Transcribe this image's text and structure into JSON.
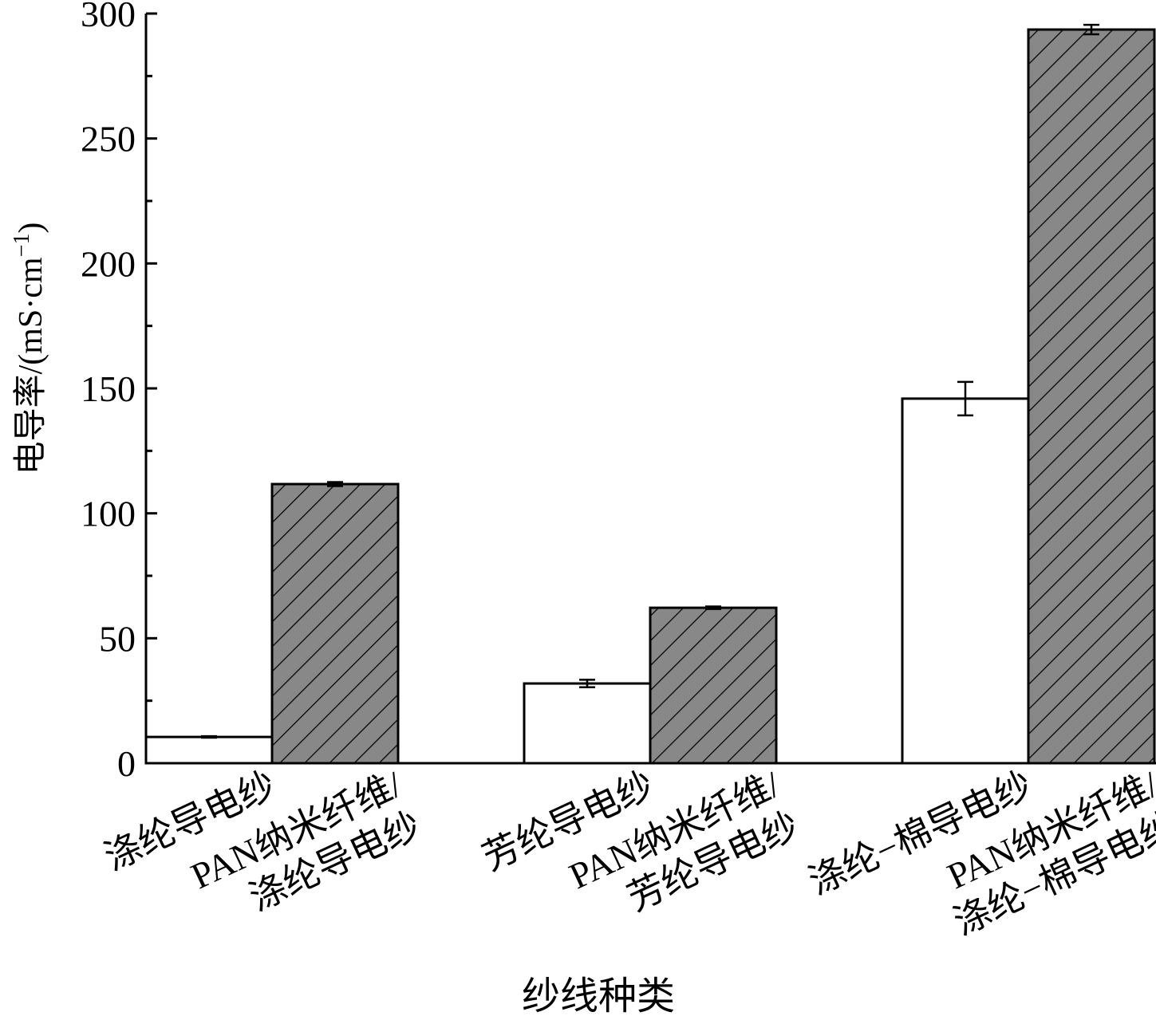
{
  "chart_data": {
    "type": "bar",
    "ylabel": [
      "电导率/(mS·cm",
      "−1",
      ")"
    ],
    "xlabel": "纱线种类",
    "categories": [
      [
        "涤纶导电纱"
      ],
      [
        "PAN纳米纤维/",
        "涤纶导电纱"
      ],
      [
        "芳纶导电纱"
      ],
      [
        "PAN纳米纤维/",
        "芳纶导电纱"
      ],
      [
        "涤纶−棉导电纱"
      ],
      [
        "PAN纳米纤维/",
        "涤纶−棉导电纱"
      ]
    ],
    "values": [
      10.5,
      111.7,
      31.9,
      62.2,
      145.9,
      293.6
    ],
    "errors": [
      0.3,
      0.8,
      1.5,
      0.5,
      6.7,
      1.9
    ],
    "colors": [
      "#ffffff",
      "#888888",
      "#ffffff",
      "#888888",
      "#ffffff",
      "#888888"
    ],
    "hatch": [
      false,
      true,
      false,
      true,
      false,
      true
    ],
    "ylim": [
      0,
      300
    ],
    "yticks": [
      0,
      50,
      100,
      150,
      200,
      250,
      300
    ],
    "minor_yticks": [
      25,
      75,
      125,
      175,
      225,
      275
    ]
  }
}
